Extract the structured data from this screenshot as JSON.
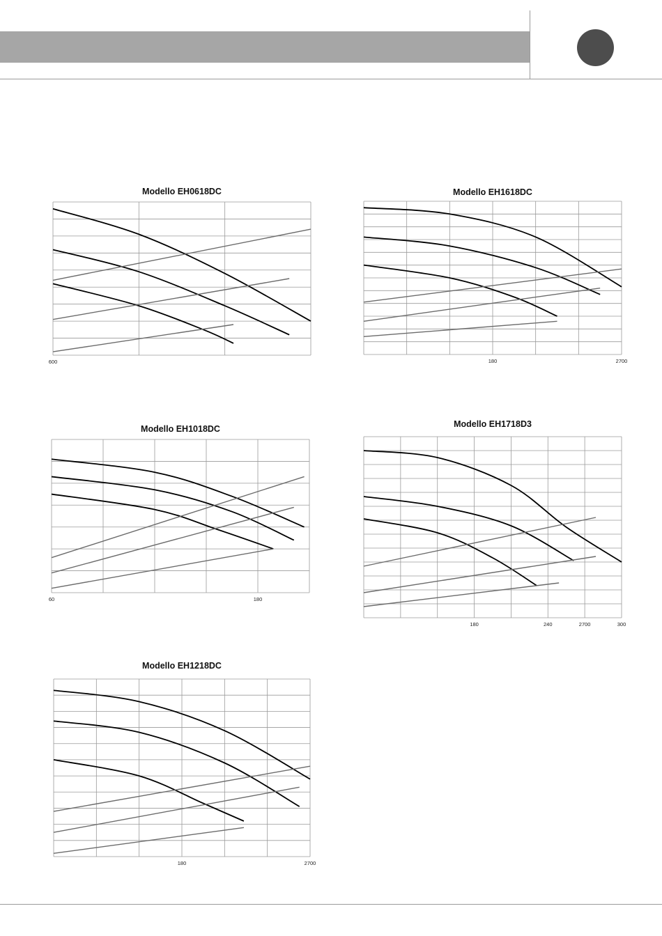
{
  "colors": {
    "header_bar": "#a6a6a6",
    "badge": "#4d4d4d",
    "grid": "#9a9a9a",
    "curve_dark": "#000000",
    "curve_gray": "#6b6b6b"
  },
  "chart_data": [
    {
      "type": "line",
      "title": "Modello EH0618DC",
      "xlabel": "",
      "ylabel": "",
      "xlim": [
        0,
        6
      ],
      "ylim": [
        0,
        9
      ],
      "x_ticks": [
        {
          "x": 0,
          "label": "600"
        }
      ],
      "x_grid": [
        0,
        2,
        4,
        6
      ],
      "y_grid": [
        0,
        1,
        2,
        3,
        4,
        5,
        6,
        7,
        8,
        9
      ],
      "series": [
        {
          "style": "dark",
          "points": [
            [
              0,
              8.6
            ],
            [
              2,
              7.1
            ],
            [
              4,
              4.8
            ],
            [
              6,
              2.0
            ]
          ]
        },
        {
          "style": "dark",
          "points": [
            [
              0,
              6.2
            ],
            [
              2,
              4.9
            ],
            [
              4,
              2.9
            ],
            [
              5.5,
              1.2
            ]
          ]
        },
        {
          "style": "dark",
          "points": [
            [
              0,
              4.2
            ],
            [
              2,
              2.9
            ],
            [
              3.5,
              1.5
            ],
            [
              4.2,
              0.7
            ]
          ]
        },
        {
          "style": "gray",
          "points": [
            [
              0,
              4.4
            ],
            [
              6,
              7.4
            ]
          ]
        },
        {
          "style": "gray",
          "points": [
            [
              0,
              2.1
            ],
            [
              5.5,
              4.5
            ]
          ]
        },
        {
          "style": "gray",
          "points": [
            [
              0,
              0.2
            ],
            [
              4.2,
              1.8
            ]
          ]
        }
      ]
    },
    {
      "type": "line",
      "title": "Modello EH1618DC",
      "xlabel": "",
      "ylabel": "",
      "xlim": [
        0,
        6
      ],
      "ylim": [
        0,
        12
      ],
      "x_ticks": [
        {
          "x": 3,
          "label": "180"
        },
        {
          "x": 6,
          "label": "2700"
        }
      ],
      "x_grid": [
        0,
        1,
        2,
        3,
        4,
        5,
        6
      ],
      "y_grid": [
        0,
        1,
        2,
        3,
        4,
        5,
        6,
        7,
        8,
        9,
        10,
        11,
        12
      ],
      "series": [
        {
          "style": "dark",
          "points": [
            [
              0,
              11.5
            ],
            [
              2,
              11.0
            ],
            [
              4,
              9.2
            ],
            [
              6,
              5.3
            ]
          ]
        },
        {
          "style": "dark",
          "points": [
            [
              0,
              9.2
            ],
            [
              2,
              8.5
            ],
            [
              4,
              6.8
            ],
            [
              5.5,
              4.7
            ]
          ]
        },
        {
          "style": "dark",
          "points": [
            [
              0,
              7.0
            ],
            [
              2,
              6.0
            ],
            [
              3.5,
              4.5
            ],
            [
              4.5,
              3.0
            ]
          ]
        },
        {
          "style": "gray",
          "points": [
            [
              0,
              4.1
            ],
            [
              6,
              6.7
            ]
          ]
        },
        {
          "style": "gray",
          "points": [
            [
              0,
              2.6
            ],
            [
              5.5,
              5.2
            ]
          ]
        },
        {
          "style": "gray",
          "points": [
            [
              0,
              1.4
            ],
            [
              4.5,
              2.6
            ]
          ]
        }
      ]
    },
    {
      "type": "line",
      "title": "Modello EH1018DC",
      "xlabel": "",
      "ylabel": "",
      "xlim": [
        0,
        5
      ],
      "ylim": [
        0,
        7
      ],
      "x_ticks": [
        {
          "x": 0,
          "label": "60"
        },
        {
          "x": 4,
          "label": "180"
        }
      ],
      "x_grid": [
        0,
        1,
        2,
        3,
        4,
        5
      ],
      "y_grid": [
        0,
        1,
        2,
        3,
        4,
        5,
        6,
        7
      ],
      "series": [
        {
          "style": "dark",
          "points": [
            [
              0,
              6.1
            ],
            [
              2,
              5.5
            ],
            [
              3.5,
              4.4
            ],
            [
              4.9,
              3.0
            ]
          ]
        },
        {
          "style": "dark",
          "points": [
            [
              0,
              5.3
            ],
            [
              2,
              4.7
            ],
            [
              3.5,
              3.7
            ],
            [
              4.7,
              2.4
            ]
          ]
        },
        {
          "style": "dark",
          "points": [
            [
              0,
              4.5
            ],
            [
              2,
              3.8
            ],
            [
              3.2,
              2.9
            ],
            [
              4.3,
              2.0
            ]
          ]
        },
        {
          "style": "gray",
          "points": [
            [
              0,
              1.6
            ],
            [
              4.9,
              5.3
            ]
          ]
        },
        {
          "style": "gray",
          "points": [
            [
              0,
              0.9
            ],
            [
              4.7,
              3.9
            ]
          ]
        },
        {
          "style": "gray",
          "points": [
            [
              0,
              0.2
            ],
            [
              4.3,
              2.0
            ]
          ]
        }
      ]
    },
    {
      "type": "line",
      "title": "Modello EH1718D3",
      "xlabel": "",
      "ylabel": "",
      "xlim": [
        0,
        7
      ],
      "ylim": [
        0,
        13
      ],
      "x_ticks": [
        {
          "x": 3,
          "label": "180"
        },
        {
          "x": 5,
          "label": "240"
        },
        {
          "x": 6,
          "label": "2700"
        },
        {
          "x": 7,
          "label": "300"
        }
      ],
      "x_grid": [
        0,
        1,
        2,
        3,
        4,
        5,
        6,
        7
      ],
      "y_grid": [
        0,
        1,
        2,
        3,
        4,
        5,
        6,
        7,
        8,
        9,
        10,
        11,
        12,
        13
      ],
      "series": [
        {
          "style": "dark",
          "points": [
            [
              0,
              12.0
            ],
            [
              2,
              11.5
            ],
            [
              4,
              9.5
            ],
            [
              5.5,
              6.5
            ],
            [
              7,
              4.0
            ]
          ]
        },
        {
          "style": "dark",
          "points": [
            [
              0,
              8.7
            ],
            [
              2,
              8.0
            ],
            [
              4,
              6.6
            ],
            [
              5.7,
              4.1
            ]
          ]
        },
        {
          "style": "dark",
          "points": [
            [
              0,
              7.1
            ],
            [
              2,
              6.1
            ],
            [
              3.5,
              4.3
            ],
            [
              4.7,
              2.3
            ]
          ]
        },
        {
          "style": "gray",
          "points": [
            [
              0,
              3.7
            ],
            [
              6.3,
              7.2
            ]
          ]
        },
        {
          "style": "gray",
          "points": [
            [
              0,
              1.8
            ],
            [
              6.3,
              4.4
            ]
          ]
        },
        {
          "style": "gray",
          "points": [
            [
              0,
              0.8
            ],
            [
              5.3,
              2.5
            ]
          ]
        }
      ]
    },
    {
      "type": "line",
      "title": "Modello EH1218DC",
      "xlabel": "",
      "ylabel": "",
      "xlim": [
        0,
        6
      ],
      "ylim": [
        0,
        11
      ],
      "x_ticks": [
        {
          "x": 3,
          "label": "180"
        },
        {
          "x": 6,
          "label": "2700"
        }
      ],
      "x_grid": [
        0,
        1,
        2,
        3,
        4,
        5,
        6
      ],
      "y_grid": [
        0,
        1,
        2,
        3,
        4,
        5,
        6,
        7,
        8,
        9,
        10,
        11
      ],
      "series": [
        {
          "style": "dark",
          "points": [
            [
              0,
              10.3
            ],
            [
              2,
              9.6
            ],
            [
              4,
              7.8
            ],
            [
              6,
              4.8
            ]
          ]
        },
        {
          "style": "dark",
          "points": [
            [
              0,
              8.4
            ],
            [
              2,
              7.7
            ],
            [
              4,
              5.8
            ],
            [
              5.75,
              3.1
            ]
          ]
        },
        {
          "style": "dark",
          "points": [
            [
              0,
              6.0
            ],
            [
              2,
              5.0
            ],
            [
              3.5,
              3.3
            ],
            [
              4.45,
              2.2
            ]
          ]
        },
        {
          "style": "gray",
          "points": [
            [
              0,
              2.8
            ],
            [
              6,
              5.6
            ]
          ]
        },
        {
          "style": "gray",
          "points": [
            [
              0,
              1.5
            ],
            [
              5.75,
              4.3
            ]
          ]
        },
        {
          "style": "gray",
          "points": [
            [
              0,
              0.2
            ],
            [
              4.45,
              1.8
            ]
          ]
        }
      ]
    }
  ]
}
